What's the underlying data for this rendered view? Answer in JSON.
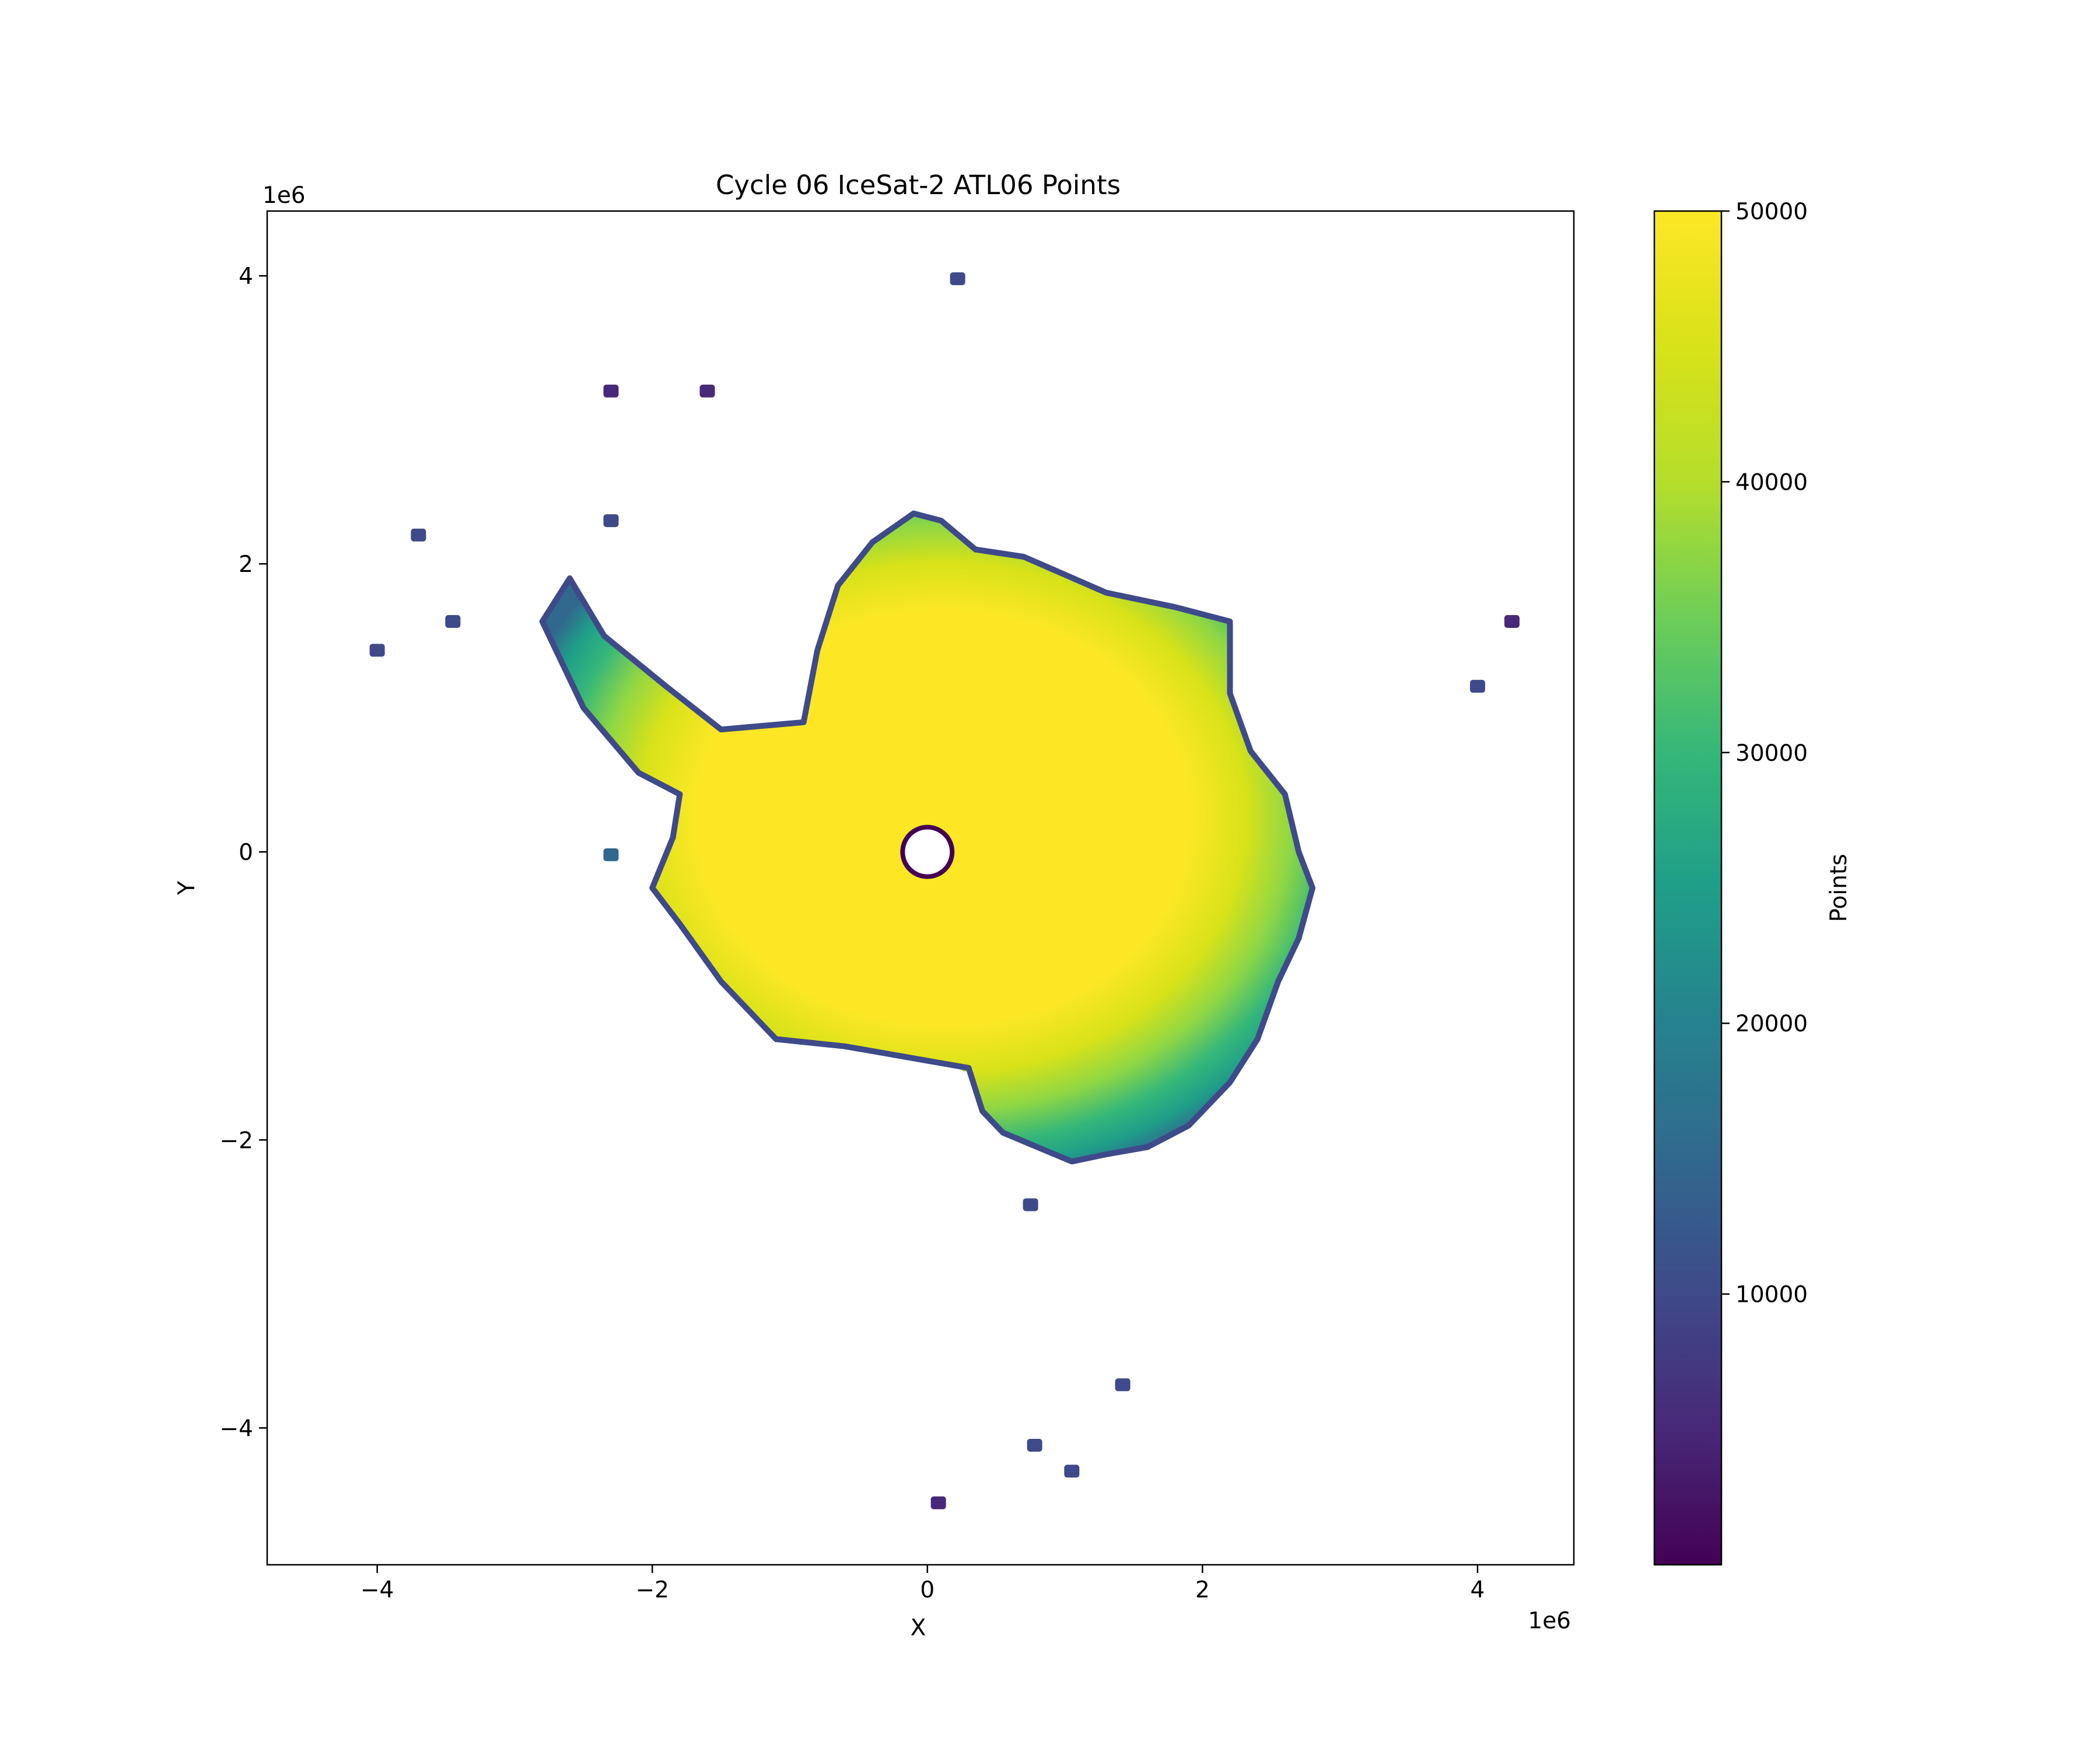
{
  "chart_data": {
    "type": "heatmap",
    "title": "Cycle 06 IceSat-2 ATL06 Points",
    "xlabel": "X",
    "ylabel": "Y",
    "x_offset_text": "1e6",
    "y_offset_text": "1e6",
    "xlim": [
      -4.8,
      4.7
    ],
    "ylim": [
      -4.95,
      4.45
    ],
    "x_ticks": [
      {
        "value": -4,
        "label": "−4"
      },
      {
        "value": -2,
        "label": "−2"
      },
      {
        "value": 0,
        "label": "0"
      },
      {
        "value": 2,
        "label": "2"
      },
      {
        "value": 4,
        "label": "4"
      }
    ],
    "y_ticks": [
      {
        "value": 4,
        "label": "4"
      },
      {
        "value": 2,
        "label": "2"
      },
      {
        "value": 0,
        "label": "0"
      },
      {
        "value": -2,
        "label": "−2"
      },
      {
        "value": -4,
        "label": "−4"
      }
    ],
    "colormap": "viridis",
    "colorbar": {
      "label": "Points",
      "range": [
        0,
        50000
      ],
      "ticks": [
        {
          "value": 10000,
          "label": "10000"
        },
        {
          "value": 20000,
          "label": "20000"
        },
        {
          "value": 30000,
          "label": "30000"
        },
        {
          "value": 40000,
          "label": "40000"
        },
        {
          "value": 50000,
          "label": "50000"
        }
      ]
    },
    "main_region": {
      "name": "continent",
      "outline": [
        [
          -0.4,
          2.15
        ],
        [
          -0.1,
          2.35
        ],
        [
          0.1,
          2.3
        ],
        [
          0.35,
          2.1
        ],
        [
          0.7,
          2.05
        ],
        [
          1.3,
          1.8
        ],
        [
          1.8,
          1.7
        ],
        [
          2.2,
          1.6
        ],
        [
          2.2,
          1.1
        ],
        [
          2.35,
          0.7
        ],
        [
          2.6,
          0.4
        ],
        [
          2.7,
          0.0
        ],
        [
          2.8,
          -0.25
        ],
        [
          2.7,
          -0.6
        ],
        [
          2.55,
          -0.9
        ],
        [
          2.4,
          -1.3
        ],
        [
          2.2,
          -1.6
        ],
        [
          1.9,
          -1.9
        ],
        [
          1.6,
          -2.05
        ],
        [
          1.3,
          -2.1
        ],
        [
          1.05,
          -2.15
        ],
        [
          0.8,
          -2.05
        ],
        [
          0.55,
          -1.95
        ],
        [
          0.4,
          -1.8
        ],
        [
          0.3,
          -1.5
        ],
        [
          -0.6,
          -1.35
        ],
        [
          -1.1,
          -1.3
        ],
        [
          -1.5,
          -0.9
        ],
        [
          -1.8,
          -0.5
        ],
        [
          -2.0,
          -0.25
        ],
        [
          -1.85,
          0.1
        ],
        [
          -1.8,
          0.4
        ],
        [
          -2.1,
          0.55
        ],
        [
          -2.5,
          1.0
        ],
        [
          -2.8,
          1.6
        ],
        [
          -2.6,
          1.9
        ],
        [
          -2.35,
          1.5
        ],
        [
          -1.9,
          1.15
        ],
        [
          -1.5,
          0.85
        ],
        [
          -0.9,
          0.9
        ],
        [
          -0.8,
          1.4
        ],
        [
          -0.65,
          1.85
        ]
      ],
      "mean_points": 50000,
      "coast_points": 12000,
      "hole": {
        "center": [
          0.0,
          0.0
        ],
        "radius": 0.18
      }
    },
    "islands": [
      {
        "x": 0.22,
        "y": 3.98,
        "points": 9000
      },
      {
        "x": -2.3,
        "y": 3.2,
        "points": 7000
      },
      {
        "x": -1.6,
        "y": 3.2,
        "points": 7000
      },
      {
        "x": -3.7,
        "y": 2.2,
        "points": 9000
      },
      {
        "x": -2.3,
        "y": 2.3,
        "points": 8000
      },
      {
        "x": -4.0,
        "y": 1.4,
        "points": 12000
      },
      {
        "x": -3.45,
        "y": 1.6,
        "points": 12000
      },
      {
        "x": -2.6,
        "y": 1.75,
        "points": 8000
      },
      {
        "x": 4.25,
        "y": 1.6,
        "points": 6000
      },
      {
        "x": 4.0,
        "y": 1.15,
        "points": 8000
      },
      {
        "x": -2.3,
        "y": -0.02,
        "points": 15000
      },
      {
        "x": 0.3,
        "y": -1.48,
        "points": 38000
      },
      {
        "x": 0.75,
        "y": -2.45,
        "points": 9000
      },
      {
        "x": 1.42,
        "y": -3.7,
        "points": 8000
      },
      {
        "x": 0.78,
        "y": -4.12,
        "points": 8000
      },
      {
        "x": 1.05,
        "y": -4.3,
        "points": 9000
      },
      {
        "x": 0.08,
        "y": -4.52,
        "points": 6000
      }
    ]
  }
}
